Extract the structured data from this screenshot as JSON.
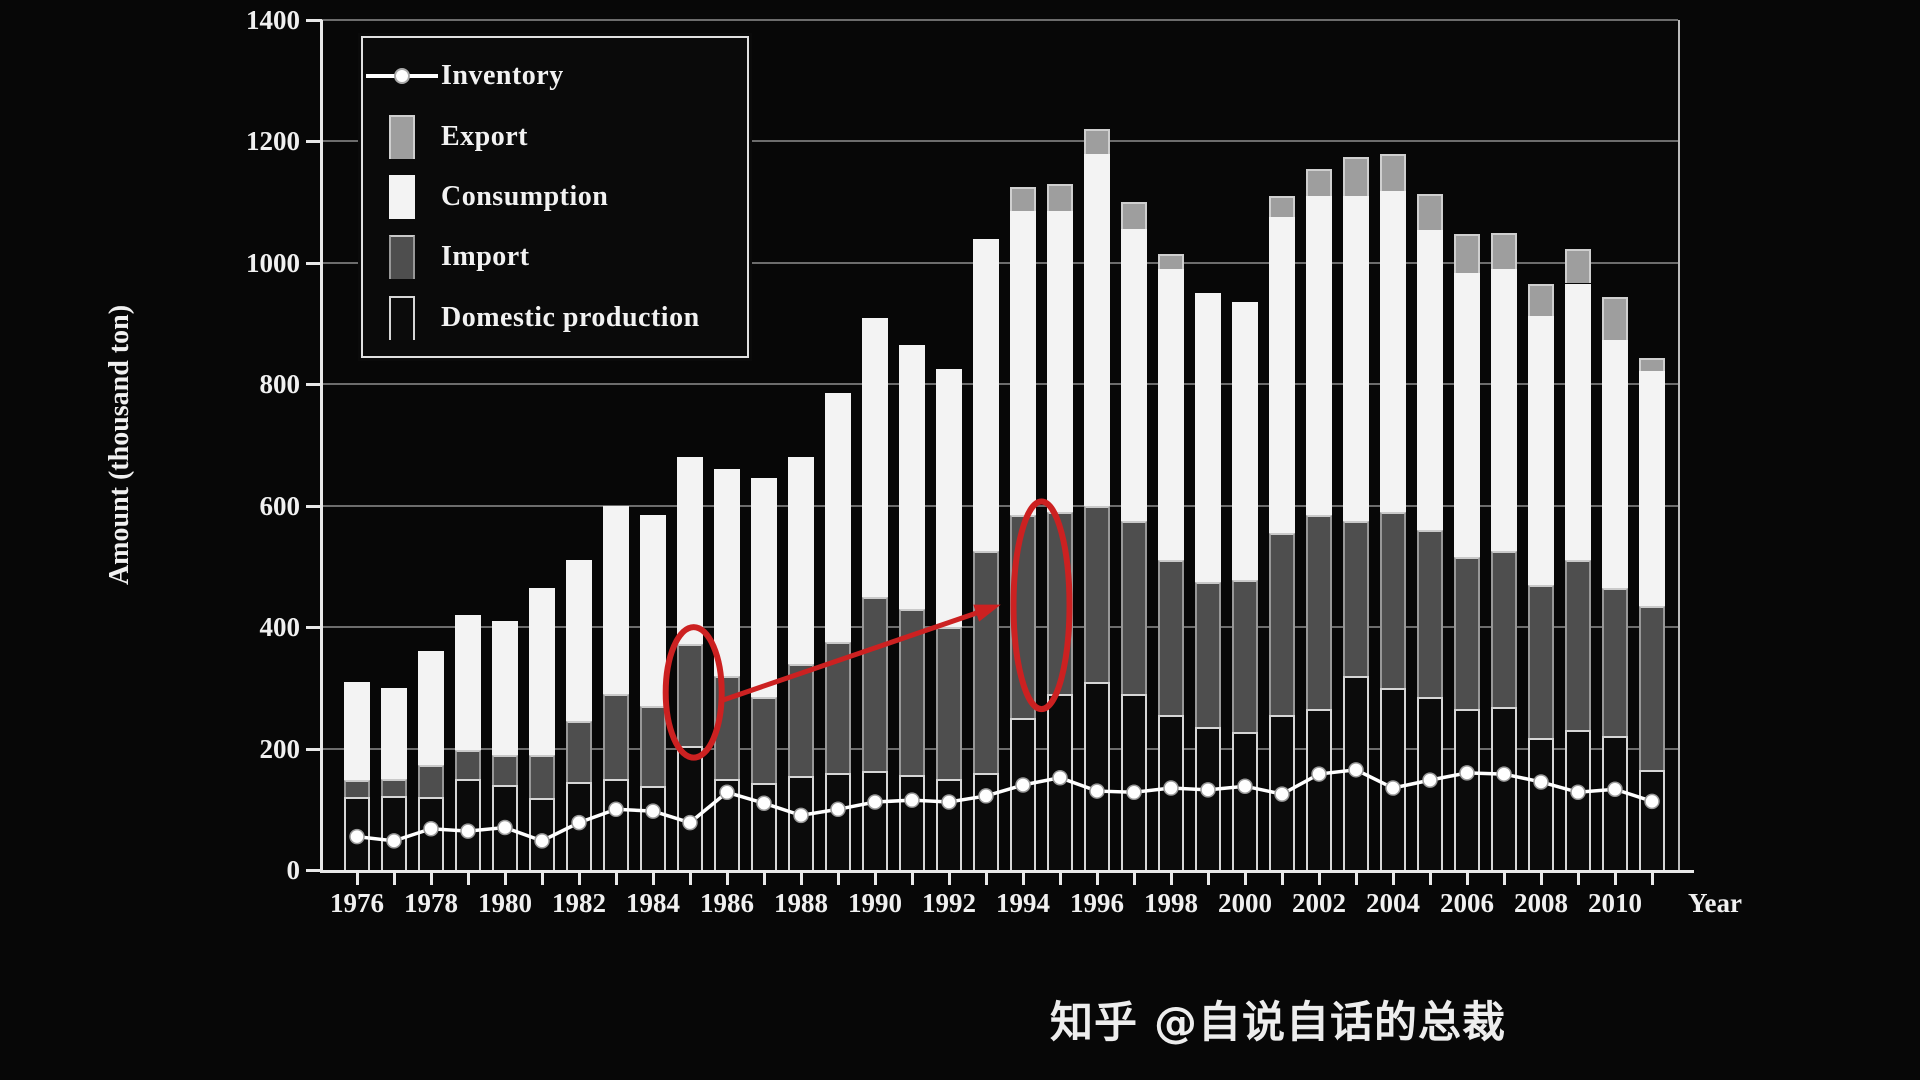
{
  "watermark": {
    "text": "知乎 @自说自话的总裁"
  },
  "chart_data": {
    "type": "bar",
    "subtype": "stacked-bars-with-inventory-line",
    "title": "",
    "xlabel": "Year",
    "ylabel": "Amount (thousand ton)",
    "ylim": [
      0,
      1400
    ],
    "yticks": [
      0,
      200,
      400,
      600,
      800,
      1000,
      1200,
      1400
    ],
    "grid": true,
    "legend_position": "top-left",
    "years": [
      1976,
      1977,
      1978,
      1979,
      1980,
      1981,
      1982,
      1983,
      1984,
      1985,
      1986,
      1987,
      1988,
      1989,
      1990,
      1991,
      1992,
      1993,
      1994,
      1995,
      1996,
      1997,
      1998,
      1999,
      2000,
      2001,
      2002,
      2003,
      2004,
      2005,
      2006,
      2007,
      2008,
      2009,
      2010,
      2011
    ],
    "xtick_labels": [
      "1976",
      "1978",
      "1980",
      "1982",
      "1984",
      "1986",
      "1988",
      "1990",
      "1992",
      "1994",
      "1996",
      "1998",
      "2000",
      "2002",
      "2004",
      "2006",
      "2008",
      "2010"
    ],
    "legend_items": [
      {
        "label": "Inventory",
        "swatch": "line-marker"
      },
      {
        "label": "Export",
        "swatch": "export"
      },
      {
        "label": "Consumption",
        "swatch": "consumption"
      },
      {
        "label": "Import",
        "swatch": "import"
      },
      {
        "label": "Domestic production",
        "swatch": "domestic"
      }
    ],
    "series": [
      {
        "name": "Domestic production",
        "role": "bar-stack-bottom",
        "values": [
          120,
          122,
          120,
          150,
          140,
          118,
          145,
          150,
          138,
          205,
          150,
          143,
          155,
          160,
          163,
          157,
          150,
          160,
          250,
          290,
          310,
          290,
          255,
          235,
          228,
          255,
          265,
          320,
          300,
          285,
          265,
          268,
          217,
          230,
          220,
          165
        ]
      },
      {
        "name": "Import",
        "role": "bar-stack",
        "values": [
          28,
          28,
          53,
          47,
          49,
          72,
          100,
          140,
          132,
          168,
          170,
          142,
          185,
          215,
          287,
          273,
          250,
          365,
          335,
          300,
          290,
          285,
          255,
          240,
          250,
          300,
          320,
          255,
          290,
          275,
          250,
          257,
          253,
          280,
          245,
          270
        ]
      },
      {
        "name": "Consumption",
        "role": "bar-stack",
        "values": [
          162,
          150,
          187,
          223,
          221,
          275,
          265,
          310,
          315,
          307,
          340,
          360,
          340,
          410,
          460,
          435,
          425,
          515,
          500,
          495,
          580,
          480,
          480,
          475,
          457,
          520,
          525,
          535,
          528,
          494,
          468,
          465,
          443,
          456,
          408,
          387
        ]
      },
      {
        "name": "Export",
        "role": "bar-stack-top",
        "values": [
          0,
          0,
          0,
          0,
          0,
          0,
          0,
          0,
          0,
          0,
          0,
          0,
          0,
          0,
          0,
          0,
          0,
          0,
          40,
          45,
          40,
          45,
          25,
          0,
          0,
          35,
          45,
          65,
          62,
          60,
          65,
          60,
          53,
          57,
          70,
          22
        ]
      },
      {
        "name": "Inventory",
        "role": "line",
        "values": [
          55,
          48,
          68,
          64,
          70,
          48,
          78,
          100,
          97,
          78,
          128,
          110,
          90,
          100,
          112,
          115,
          112,
          122,
          140,
          152,
          130,
          128,
          135,
          132,
          138,
          125,
          158,
          165,
          135,
          148,
          160,
          158,
          145,
          128,
          133,
          113
        ]
      }
    ],
    "annotations": {
      "color": "#cc2121",
      "ellipses": [
        {
          "year": 1985.1,
          "value_low": 185,
          "value_high": 400,
          "target": "1985 import segment"
        },
        {
          "year": 1994.5,
          "value_low": 265,
          "value_high": 607,
          "target": "1994 import segment"
        }
      ],
      "arrow": {
        "from_year": 1985.8,
        "from_value": 278,
        "to_year": 1993.4,
        "to_value": 437
      }
    },
    "colors": {
      "background": "#070707",
      "axis": "#e8e8e8",
      "grid": "#8f8f8f",
      "consumption": "#f3f3f3",
      "export": "#9e9e9e",
      "import": "#4e4e4e",
      "domestic": "#0b0b0b",
      "domestic_border": "#d6d6d6",
      "inventory_line": "#ffffff",
      "text": "#f0f0f0"
    }
  }
}
